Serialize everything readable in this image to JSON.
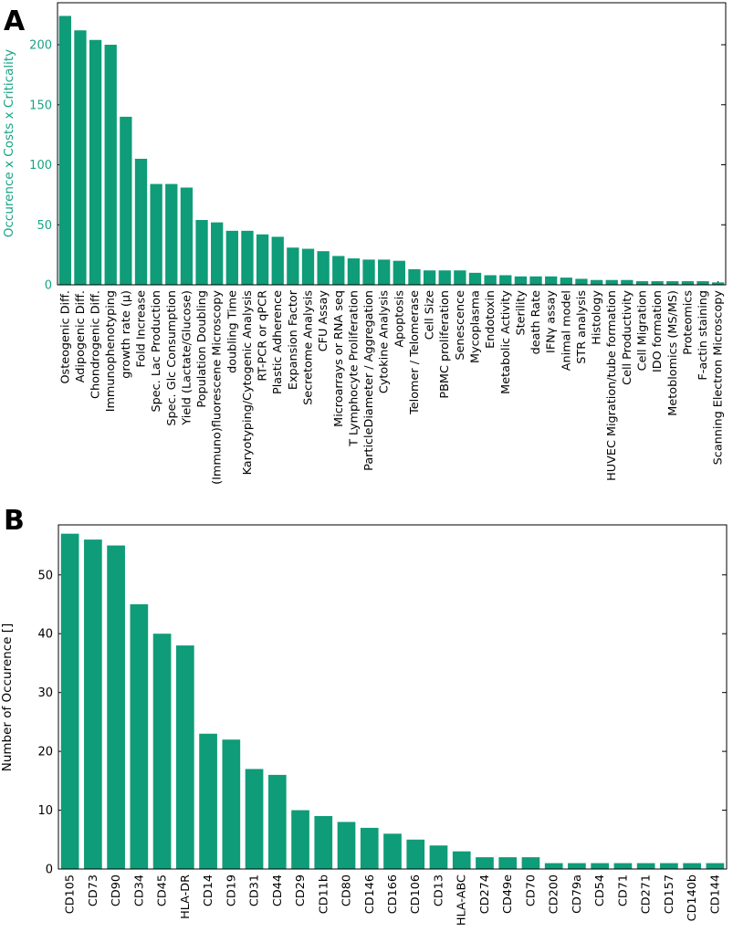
{
  "chart_data": [
    {
      "panel_label": "A",
      "type": "bar",
      "title": "",
      "xlabel": "",
      "ylabel": "Occurence x Costs x Criticality",
      "ylim": [
        0,
        235
      ],
      "yticks": [
        0,
        50,
        100,
        150,
        200
      ],
      "bar_color": "#0f9c78",
      "ylabel_color": "#17a383",
      "categories": [
        "Osteogenic Diff.",
        "Adipogenic Diff.",
        "Chondrogenic Diff.",
        "Immunophenotyping",
        "growth rate (µ)",
        "Fold Increase",
        "Spec. Lac Production",
        "Spec. Glc Consumption",
        "Yield (Lactate/Glucose)",
        "Population Doubling",
        "(Immuno)fluorescene Microscopy",
        "doubling Time",
        "Karyotyping/Cytogenic Analysis",
        "RT-PCR or qPCR",
        "Plastic Adherence",
        "Expansion Factor",
        "Secretome Analysis",
        "CFU Assay",
        "Microarrays or RNA seq",
        "T Lymphocyte Proliferation",
        "ParticleDiameter / Aggregation",
        "Cytokine Analysis",
        "Apoptosis",
        "Telomer / Telomerase",
        "Cell Size",
        "PBMC proliferation",
        "Senescence",
        "Mycoplasma",
        "Endotoxin",
        "Metabolic Activity",
        "Sterility",
        "death Rate",
        "IFNγ assay",
        "Animal model",
        "STR analysis",
        "Histology",
        "HUVEC Migration/tube formation",
        "Cell Productivity",
        "Cell Migration",
        "IDO formation",
        "Metoblomics (MS/MS)",
        "Proteomics",
        "F-actin staining",
        "Scanning Electron Microscopy"
      ],
      "values": [
        224,
        212,
        204,
        200,
        140,
        105,
        84,
        84,
        81,
        54,
        52,
        45,
        45,
        42,
        40,
        31,
        30,
        28,
        24,
        22,
        21,
        21,
        20,
        13,
        12,
        12,
        12,
        10,
        8,
        8,
        7,
        7,
        7,
        6,
        5,
        4,
        4,
        4,
        3,
        3,
        3,
        3,
        3,
        2
      ]
    },
    {
      "panel_label": "B",
      "type": "bar",
      "title": "",
      "xlabel": "",
      "ylabel": "Number of Occurence   []",
      "ylim": [
        0,
        58.5
      ],
      "yticks": [
        0,
        10,
        20,
        30,
        40,
        50
      ],
      "bar_color": "#0f9c78",
      "ylabel_color": "#000000",
      "categories": [
        "CD105",
        "CD73",
        "CD90",
        "CD34",
        "CD45",
        "HLA-DR",
        "CD14",
        "CD19",
        "CD31",
        "CD44",
        "CD29",
        "CD11b",
        "CD80",
        "CD146",
        "CD166",
        "CD106",
        "CD13",
        "HLA-ABC",
        "CD274",
        "CD49e",
        "CD70",
        "CD200",
        "CD79a",
        "CD54",
        "CD71",
        "CD271",
        "CD157",
        "CD140b",
        "CD144"
      ],
      "values": [
        57,
        56,
        55,
        45,
        40,
        38,
        23,
        22,
        17,
        16,
        10,
        9,
        8,
        7,
        6,
        5,
        4,
        3,
        2,
        2,
        2,
        1,
        1,
        1,
        1,
        1,
        1,
        1,
        1
      ]
    }
  ]
}
